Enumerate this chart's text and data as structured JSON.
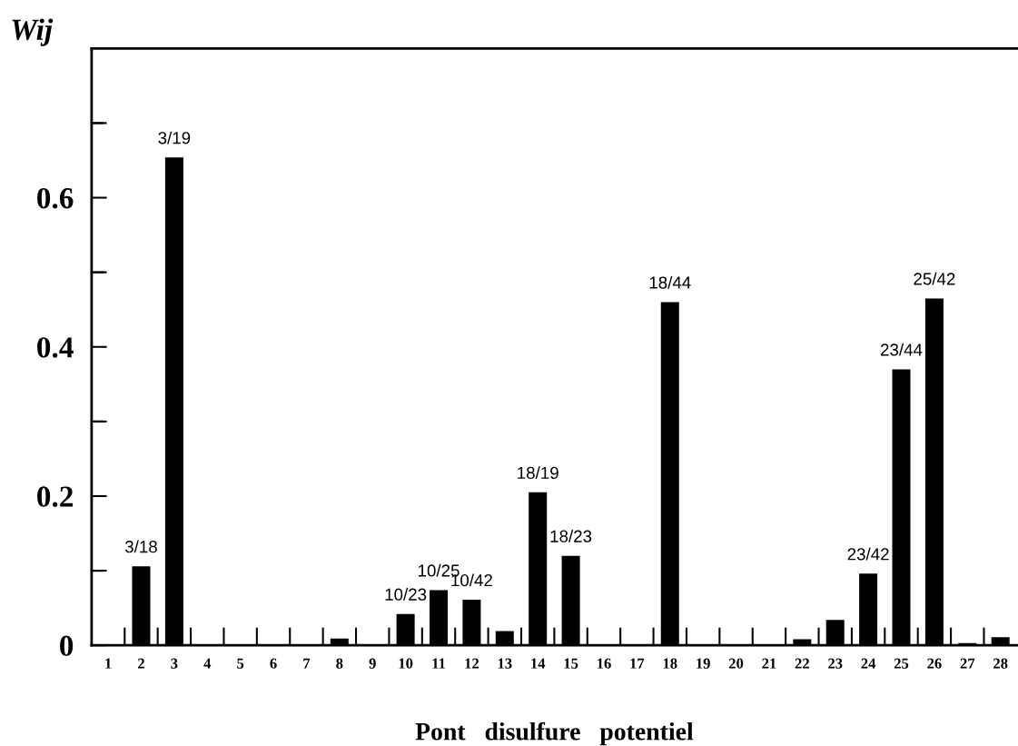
{
  "chart_data": {
    "type": "bar",
    "ylabel": "Wij",
    "xlabel": "Pont   disulfure   potentiel",
    "categories": [
      "1",
      "2",
      "3",
      "4",
      "5",
      "6",
      "7",
      "8",
      "9",
      "10",
      "11",
      "12",
      "13",
      "14",
      "15",
      "16",
      "17",
      "18",
      "19",
      "20",
      "21",
      "22",
      "23",
      "24",
      "25",
      "26",
      "27",
      "28"
    ],
    "values": [
      0,
      0.106,
      0.654,
      0,
      0,
      0,
      0,
      0.009,
      0,
      0.042,
      0.074,
      0.061,
      0.019,
      0.205,
      0.12,
      0,
      0,
      0.46,
      0,
      0,
      0,
      0.008,
      0.034,
      0.096,
      0.37,
      0.465,
      0.003,
      0.011
    ],
    "color": "#000000",
    "ylim": [
      0,
      0.8
    ],
    "yticks": [
      0,
      {
        "value": 0.1,
        "label": null
      },
      0.2,
      {
        "value": 0.3,
        "label": null
      },
      0.4,
      {
        "value": 0.5,
        "label": null
      },
      0.6,
      {
        "value": 0.7,
        "label": null
      }
    ],
    "grid": false,
    "legend": false,
    "annotations": [
      {
        "text": "3/18",
        "x": "2",
        "y": 0.106
      },
      {
        "text": "3/19",
        "x": "3",
        "y": 0.654
      },
      {
        "text": "10/23",
        "x": "10",
        "y": 0.042
      },
      {
        "text": "10/25",
        "x": "11",
        "y": 0.074
      },
      {
        "text": "10/42",
        "x": "12",
        "y": 0.061
      },
      {
        "text": "18/19",
        "x": "14",
        "y": 0.205
      },
      {
        "text": "18/23",
        "x": "15",
        "y": 0.12
      },
      {
        "text": "18/44",
        "x": "18",
        "y": 0.46
      },
      {
        "text": "23/42",
        "x": "24",
        "y": 0.096
      },
      {
        "text": "23/44",
        "x": "25",
        "y": 0.37
      },
      {
        "text": "25/42",
        "x": "26",
        "y": 0.465
      }
    ]
  }
}
